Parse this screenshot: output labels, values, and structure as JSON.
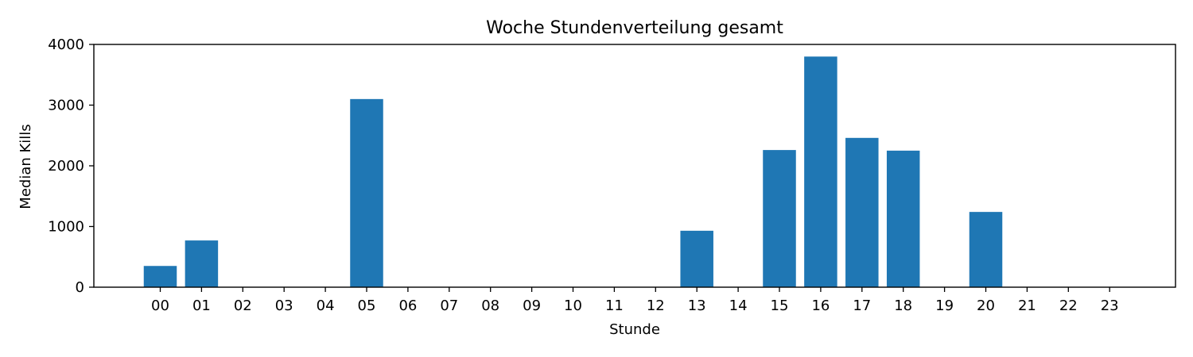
{
  "chart_data": {
    "type": "bar",
    "title": "Woche Stundenverteilung gesamt",
    "xlabel": "Stunde",
    "ylabel": "Median Kills",
    "categories": [
      "00",
      "01",
      "02",
      "03",
      "04",
      "05",
      "06",
      "07",
      "08",
      "09",
      "10",
      "11",
      "12",
      "13",
      "14",
      "15",
      "16",
      "17",
      "18",
      "19",
      "20",
      "21",
      "22",
      "23"
    ],
    "values": [
      350,
      770,
      0,
      0,
      0,
      3100,
      0,
      0,
      0,
      0,
      0,
      0,
      0,
      930,
      0,
      2260,
      3800,
      2460,
      2250,
      0,
      1240,
      0,
      0,
      0
    ],
    "ylim": [
      0,
      4000
    ],
    "yticks": [
      0,
      1000,
      2000,
      3000,
      4000
    ],
    "bar_color": "#1f77b4",
    "grid": false,
    "legend": "none"
  }
}
